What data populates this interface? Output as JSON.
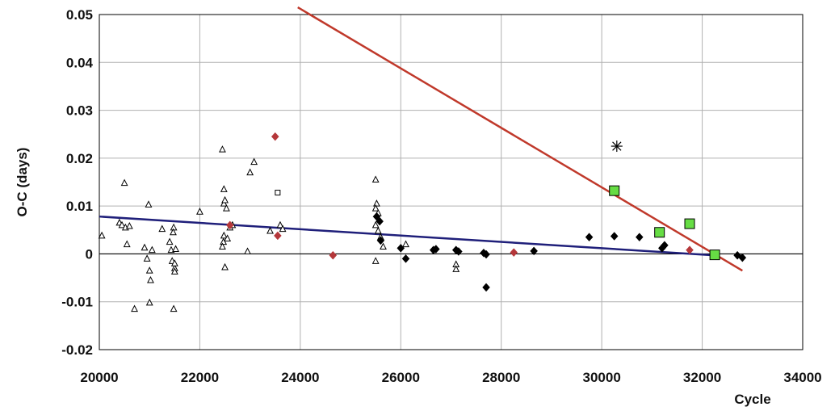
{
  "chart_data": {
    "type": "scatter",
    "title": "",
    "xlabel": "Cycle",
    "ylabel": "O-C  (days)",
    "xlim": [
      20000,
      34000
    ],
    "ylim": [
      -0.02,
      0.05
    ],
    "xticks": [
      20000,
      22000,
      24000,
      26000,
      28000,
      30000,
      32000,
      34000
    ],
    "yticks": [
      0.05,
      0.04,
      0.03,
      0.02,
      0.01,
      0,
      -0.01,
      -0.02
    ],
    "xtick_labels": [
      "20000",
      "22000",
      "24000",
      "26000",
      "28000",
      "30000",
      "32000",
      "34000"
    ],
    "ytick_labels": [
      "0.05",
      "0.04",
      "0.03",
      "0.02",
      "0.01",
      "0",
      "-0.01",
      "-0.02"
    ],
    "grid": true,
    "legend": "none",
    "colors": {
      "fit_blue": "#1f1f7a",
      "fit_red": "#c0392b",
      "diamond_red": "#b5373a",
      "square_green": "#66dd44",
      "grid": "#b0b0b0",
      "zero_line": "#000000"
    },
    "series": [
      {
        "marker": "triangle-open",
        "color": "#000000",
        "points": [
          [
            20050,
            0.0038
          ],
          [
            20400,
            0.0065
          ],
          [
            20450,
            0.006
          ],
          [
            20500,
            0.0148
          ],
          [
            20520,
            0.0055
          ],
          [
            20550,
            0.002
          ],
          [
            20600,
            0.0058
          ],
          [
            20700,
            -0.0115
          ],
          [
            20900,
            0.0013
          ],
          [
            20950,
            -0.001
          ],
          [
            20980,
            0.0103
          ],
          [
            21000,
            -0.0035
          ],
          [
            21020,
            -0.0055
          ],
          [
            21050,
            0.0008
          ],
          [
            21000,
            -0.0102
          ],
          [
            21250,
            0.0052
          ],
          [
            21400,
            0.0025
          ],
          [
            21430,
            0.0008
          ],
          [
            21450,
            -0.0015
          ],
          [
            21480,
            0.0055
          ],
          [
            21470,
            0.0045
          ],
          [
            21500,
            -0.003
          ],
          [
            21500,
            -0.0037
          ],
          [
            21500,
            -0.002
          ],
          [
            21520,
            0.001
          ],
          [
            21480,
            -0.0115
          ],
          [
            22000,
            0.0088
          ],
          [
            22450,
            0.0218
          ],
          [
            22480,
            0.0135
          ],
          [
            22480,
            0.0105
          ],
          [
            22500,
            0.0112
          ],
          [
            22480,
            0.0038
          ],
          [
            22470,
            0.0025
          ],
          [
            22450,
            0.0015
          ],
          [
            22500,
            -0.0028
          ],
          [
            22530,
            0.0095
          ],
          [
            22550,
            0.0032
          ],
          [
            22600,
            0.0055
          ],
          [
            22650,
            0.006
          ],
          [
            22950,
            0.0005
          ],
          [
            23000,
            0.017
          ],
          [
            23080,
            0.0192
          ],
          [
            23400,
            0.0048
          ],
          [
            23600,
            0.006
          ],
          [
            23650,
            0.0052
          ],
          [
            25500,
            0.0155
          ],
          [
            25520,
            0.0105
          ],
          [
            25500,
            0.0095
          ],
          [
            25550,
            0.0085
          ],
          [
            25500,
            0.006
          ],
          [
            25550,
            0.0048
          ],
          [
            25600,
            0.0035
          ],
          [
            25500,
            -0.0015
          ],
          [
            25650,
            0.0015
          ],
          [
            26100,
            0.002
          ],
          [
            27100,
            -0.0022
          ],
          [
            27100,
            -0.0032
          ]
        ]
      },
      {
        "marker": "square-open",
        "color": "#000000",
        "points": [
          [
            23550,
            0.0128
          ]
        ]
      },
      {
        "marker": "diamond",
        "color": "#b5373a",
        "points": [
          [
            22600,
            0.006
          ],
          [
            23500,
            0.0245
          ],
          [
            23550,
            0.0038
          ],
          [
            24650,
            -0.0003
          ],
          [
            28250,
            0.0003
          ],
          [
            31750,
            0.0008
          ]
        ]
      },
      {
        "marker": "diamond",
        "color": "#000000",
        "points": [
          [
            25520,
            0.0078
          ],
          [
            25580,
            0.0068
          ],
          [
            25600,
            0.0028
          ],
          [
            26000,
            0.0012
          ],
          [
            26100,
            -0.001
          ],
          [
            26650,
            0.0008
          ],
          [
            26700,
            0.001
          ],
          [
            27100,
            0.0008
          ],
          [
            27150,
            0.0005
          ],
          [
            27650,
            0.0002
          ],
          [
            27700,
            -0.0001
          ],
          [
            27700,
            -0.007
          ],
          [
            28650,
            0.0006
          ],
          [
            29750,
            0.0035
          ],
          [
            30250,
            0.0037
          ],
          [
            30750,
            0.0035
          ],
          [
            31200,
            0.0012
          ],
          [
            31250,
            0.0018
          ],
          [
            32700,
            -0.0003
          ],
          [
            32800,
            -0.0008
          ]
        ]
      },
      {
        "marker": "square",
        "color": "#66dd44",
        "points": [
          [
            30250,
            0.0132
          ],
          [
            31150,
            0.0045
          ],
          [
            31750,
            0.0063
          ],
          [
            32250,
            -0.0002
          ]
        ]
      },
      {
        "marker": "asterisk",
        "color": "#000000",
        "points": [
          [
            30300,
            0.0225
          ]
        ]
      }
    ],
    "lines": [
      {
        "color": "#1f1f7a",
        "from": [
          20000,
          0.0078
        ],
        "to": [
          32250,
          -0.0003
        ]
      },
      {
        "color": "#c0392b",
        "from": [
          23950,
          0.0515
        ],
        "to": [
          32800,
          -0.0035
        ]
      }
    ]
  }
}
